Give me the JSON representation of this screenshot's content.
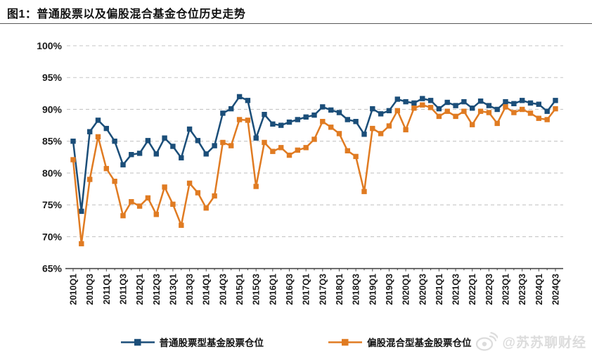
{
  "header": {
    "title": "图1：普通股票以及偏股混合基金仓位历史走势"
  },
  "watermark": {
    "text": "@苏苏聊财经",
    "icon": "weibo-icon"
  },
  "colors": {
    "series_blue": "#1b4e79",
    "series_orange": "#e07b22",
    "gridline": "#c6c6c6",
    "axis": "#4a4a4a"
  },
  "chart_data": {
    "type": "line",
    "title": "图1：普通股票以及偏股混合基金仓位历史走势",
    "xlabel": "",
    "ylabel": "",
    "ylim": [
      65,
      100
    ],
    "ytick_step": 5,
    "ytick_suffix": "%",
    "grid": "horizontal-dashed",
    "legend_position": "bottom",
    "x_labels_every": 2,
    "x": [
      "2010Q1",
      "2010Q2",
      "2010Q3",
      "2010Q4",
      "2011Q1",
      "2011Q2",
      "2011Q3",
      "2011Q4",
      "2012Q1",
      "2012Q2",
      "2012Q3",
      "2012Q4",
      "2013Q1",
      "2013Q2",
      "2013Q3",
      "2013Q4",
      "2014Q1",
      "2014Q2",
      "2014Q3",
      "2014Q4",
      "2015Q1",
      "2015Q2",
      "2015Q3",
      "2015Q4",
      "2016Q1",
      "2016Q2",
      "2016Q3",
      "2016Q4",
      "2017Q1",
      "2017Q2",
      "2017Q3",
      "2017Q4",
      "2018Q1",
      "2018Q2",
      "2018Q3",
      "2018Q4",
      "2019Q1",
      "2019Q2",
      "2019Q3",
      "2019Q4",
      "2020Q1",
      "2020Q2",
      "2020Q3",
      "2020Q4",
      "2021Q1",
      "2021Q2",
      "2021Q3",
      "2021Q4",
      "2022Q1",
      "2022Q2",
      "2022Q3",
      "2022Q4",
      "2023Q1",
      "2023Q2",
      "2023Q3",
      "2023Q4",
      "2024Q1",
      "2024Q2",
      "2024Q3"
    ],
    "series": [
      {
        "name": "普通股票型基金股票仓位",
        "color": "#1b4e79",
        "values": [
          85.0,
          74.0,
          86.5,
          88.3,
          87.0,
          85.0,
          81.3,
          82.9,
          83.1,
          85.1,
          83.0,
          85.5,
          84.2,
          82.4,
          86.9,
          85.1,
          83.0,
          84.3,
          89.4,
          90.1,
          92.0,
          91.4,
          85.5,
          89.2,
          87.7,
          87.5,
          88.0,
          88.4,
          88.8,
          89.1,
          90.4,
          89.9,
          89.5,
          88.4,
          88.1,
          86.1,
          90.1,
          89.3,
          89.8,
          91.6,
          91.2,
          91.0,
          91.7,
          91.4,
          90.1,
          91.1,
          90.6,
          91.2,
          90.2,
          91.3,
          90.6,
          90.0,
          91.2,
          90.9,
          91.4,
          91.0,
          90.8,
          89.7,
          91.4
        ]
      },
      {
        "name": "偏股混合型基金股票仓位",
        "color": "#e07b22",
        "values": [
          82.1,
          68.9,
          79.0,
          85.7,
          80.7,
          78.7,
          73.3,
          75.5,
          74.8,
          76.1,
          73.5,
          77.8,
          75.1,
          71.8,
          78.4,
          76.9,
          74.5,
          76.4,
          84.8,
          84.3,
          88.4,
          88.3,
          77.9,
          84.8,
          83.4,
          84.0,
          82.8,
          83.6,
          84.0,
          85.3,
          88.1,
          87.2,
          86.2,
          83.5,
          82.6,
          77.1,
          87.0,
          86.2,
          87.4,
          89.8,
          86.8,
          90.2,
          90.7,
          90.3,
          88.9,
          89.7,
          88.9,
          89.7,
          87.6,
          89.7,
          89.5,
          87.8,
          90.4,
          89.5,
          90.0,
          89.4,
          88.6,
          88.4,
          90.1
        ]
      }
    ]
  }
}
